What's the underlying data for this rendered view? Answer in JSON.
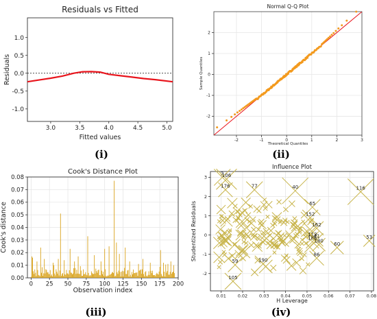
{
  "chart_data": [
    {
      "type": "line",
      "title": "Residuals vs Fitted",
      "xlabel": "Fitted values",
      "ylabel": "Residuals",
      "xlim": [
        2.6,
        5.1
      ],
      "ylim": [
        -1.35,
        1.55
      ],
      "xticks": [
        "3.0",
        "3.5",
        "4.0",
        "4.5",
        "5.0"
      ],
      "xtick_values": [
        3.0,
        3.5,
        4.0,
        4.5,
        5.0
      ],
      "yticks": [
        "-1.0",
        "-0.5",
        "0.0",
        "0.5",
        "1.0"
      ],
      "ytick_values": [
        -1.0,
        -0.5,
        0.0,
        0.5,
        1.0
      ],
      "reference_line": 0,
      "line_color": "#e8141c",
      "x": [
        2.6,
        2.8,
        3.0,
        3.2,
        3.4,
        3.55,
        3.7,
        3.85,
        4.0,
        4.2,
        4.4,
        4.6,
        4.8,
        5.1
      ],
      "y": [
        -0.24,
        -0.19,
        -0.14,
        -0.08,
        0.0,
        0.04,
        0.045,
        0.03,
        -0.03,
        -0.07,
        -0.11,
        -0.15,
        -0.18,
        -0.24
      ],
      "panel_label": "(i)"
    },
    {
      "type": "scatter",
      "title": "Normal Q-Q Plot",
      "xlabel": "Theoretical Quantiles",
      "ylabel": "Sample Quantiles",
      "xlim": [
        -2.9,
        3.0
      ],
      "ylim": [
        -2.9,
        3.0
      ],
      "xticks": [
        "-2",
        "-1",
        "0",
        "1",
        "2",
        "3"
      ],
      "xtick_values": [
        -2,
        -1,
        0,
        1,
        2,
        3
      ],
      "yticks": [
        "-2",
        "-1",
        "0",
        "1",
        "2"
      ],
      "ytick_values": [
        -2,
        -1,
        0,
        1,
        2
      ],
      "reference_line": "y=x",
      "line_color": "#e8141c",
      "point_color": "#f39a1e",
      "qq_n": 180,
      "qq_tail_offset": 0.15,
      "panel_label": "(ii)"
    },
    {
      "type": "bar",
      "title": "Cook's Distance Plot",
      "xlabel": "Observation index",
      "ylabel": "Cook's distance",
      "xlim": [
        -5,
        200
      ],
      "ylim": [
        0,
        0.08
      ],
      "xticks": [
        "0",
        "25",
        "50",
        "75",
        "100",
        "125",
        "150",
        "175",
        "200"
      ],
      "xtick_values": [
        0,
        25,
        50,
        75,
        100,
        125,
        150,
        175,
        200
      ],
      "yticks": [
        "0.00",
        "0.01",
        "0.02",
        "0.03",
        "0.04",
        "0.05",
        "0.06",
        "0.07",
        "0.08"
      ],
      "ytick_values": [
        0,
        0.01,
        0.02,
        0.03,
        0.04,
        0.05,
        0.06,
        0.07,
        0.08
      ],
      "bar_color": "#d9a21a",
      "n_obs": 196,
      "peaks": [
        {
          "x": 1,
          "y": 0.017
        },
        {
          "x": 2,
          "y": 0.016
        },
        {
          "x": 8,
          "y": 0.013
        },
        {
          "x": 13,
          "y": 0.024
        },
        {
          "x": 18,
          "y": 0.015
        },
        {
          "x": 30,
          "y": 0.012
        },
        {
          "x": 37,
          "y": 0.015
        },
        {
          "x": 40,
          "y": 0.051
        },
        {
          "x": 45,
          "y": 0.014
        },
        {
          "x": 53,
          "y": 0.023
        },
        {
          "x": 59,
          "y": 0.013
        },
        {
          "x": 64,
          "y": 0.017
        },
        {
          "x": 77,
          "y": 0.033
        },
        {
          "x": 86,
          "y": 0.018
        },
        {
          "x": 95,
          "y": 0.013
        },
        {
          "x": 100,
          "y": 0.023
        },
        {
          "x": 106,
          "y": 0.025
        },
        {
          "x": 113,
          "y": 0.077
        },
        {
          "x": 116,
          "y": 0.028
        },
        {
          "x": 120,
          "y": 0.019
        },
        {
          "x": 128,
          "y": 0.024
        },
        {
          "x": 134,
          "y": 0.013
        },
        {
          "x": 146,
          "y": 0.011
        },
        {
          "x": 152,
          "y": 0.015
        },
        {
          "x": 162,
          "y": 0.012
        },
        {
          "x": 176,
          "y": 0.022
        },
        {
          "x": 180,
          "y": 0.012
        },
        {
          "x": 186,
          "y": 0.011
        },
        {
          "x": 190,
          "y": 0.013
        },
        {
          "x": 194,
          "y": 0.01
        }
      ],
      "base_level": 0.004,
      "panel_label": "(iii)"
    },
    {
      "type": "scatter",
      "title": "Influence Plot",
      "xlabel": "H Leverage",
      "ylabel": "Studentized Residuals",
      "xlim": [
        0.005,
        0.081
      ],
      "ylim": [
        -2.9,
        3.3
      ],
      "xticks": [
        "0.01",
        "0.02",
        "0.03",
        "0.04",
        "0.05",
        "0.06",
        "0.07",
        "0.08"
      ],
      "xtick_values": [
        0.01,
        0.02,
        0.03,
        0.04,
        0.05,
        0.06,
        0.07,
        0.08
      ],
      "yticks": [
        "-2",
        "-1",
        "0",
        "1",
        "2",
        "3"
      ],
      "ytick_values": [
        -2,
        -1,
        0,
        1,
        2,
        3
      ],
      "marker": "x",
      "point_color": "#c8b44a",
      "cloud_n": 170,
      "labeled_points": [
        {
          "label": "2",
          "x": 0.0105,
          "y": 3.0,
          "size": 1.6
        },
        {
          "label": "106",
          "x": 0.0125,
          "y": 2.9,
          "size": 2.2
        },
        {
          "label": "176",
          "x": 0.012,
          "y": 2.35,
          "size": 1.3
        },
        {
          "label": "77",
          "x": 0.0255,
          "y": 2.35,
          "size": 1.6
        },
        {
          "label": "40",
          "x": 0.0445,
          "y": 2.3,
          "size": 3.0
        },
        {
          "label": "116",
          "x": 0.075,
          "y": 2.25,
          "size": 3.0
        },
        {
          "label": "65",
          "x": 0.0525,
          "y": 1.45,
          "size": 1.5
        },
        {
          "label": "152",
          "x": 0.0515,
          "y": 0.9,
          "size": 1.5
        },
        {
          "label": "162",
          "x": 0.0545,
          "y": 0.35,
          "size": 1.2
        },
        {
          "label": "113",
          "x": 0.0525,
          "y": -0.15,
          "size": 1.1
        },
        {
          "label": "41",
          "x": 0.0545,
          "y": -0.25,
          "size": 1.1
        },
        {
          "label": "186",
          "x": 0.0525,
          "y": -0.35,
          "size": 1.1
        },
        {
          "label": "180",
          "x": 0.0555,
          "y": -0.5,
          "size": 1.1
        },
        {
          "label": "60",
          "x": 0.064,
          "y": -0.65,
          "size": 1.1
        },
        {
          "label": "53",
          "x": 0.079,
          "y": -0.3,
          "size": 0.9
        },
        {
          "label": "86",
          "x": 0.0545,
          "y": -1.2,
          "size": 1.3
        },
        {
          "label": "59",
          "x": 0.0165,
          "y": -1.55,
          "size": 1.3
        },
        {
          "label": "190",
          "x": 0.0295,
          "y": -1.5,
          "size": 1.6
        },
        {
          "label": "105",
          "x": 0.0155,
          "y": -2.4,
          "size": 1.6
        }
      ],
      "panel_label": "(iv)"
    }
  ]
}
